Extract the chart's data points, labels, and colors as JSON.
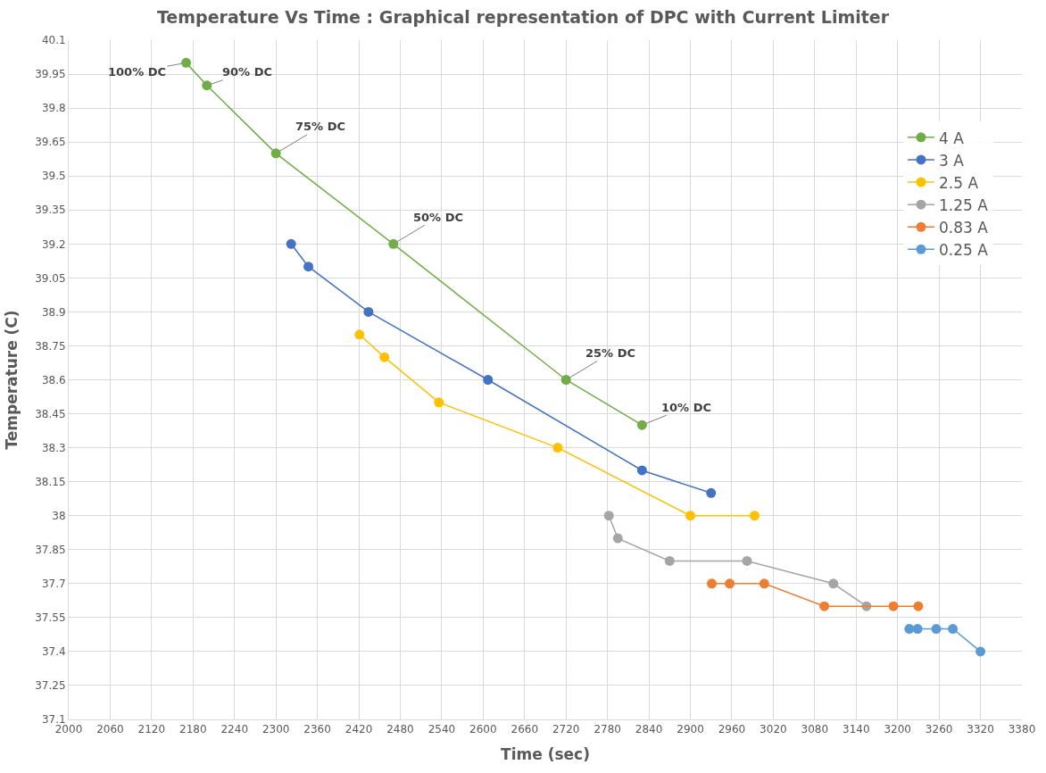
{
  "chart_data": {
    "type": "line",
    "title": "Temperature Vs Time : Graphical representation of DPC with Current Limiter",
    "xlabel": "Time (sec)",
    "ylabel": "Temperature (C)",
    "xlim": [
      2000,
      3380
    ],
    "xticks": [
      2000,
      2060,
      2120,
      2180,
      2240,
      2300,
      2360,
      2420,
      2480,
      2540,
      2600,
      2660,
      2720,
      2780,
      2840,
      2900,
      2960,
      3020,
      3080,
      3140,
      3200,
      3260,
      3320,
      3380
    ],
    "ylim": [
      37.1,
      40.1
    ],
    "yticks": [
      37.1,
      37.25,
      37.4,
      37.55,
      37.7,
      37.85,
      38,
      38.15,
      38.3,
      38.45,
      38.6,
      38.75,
      38.9,
      39.05,
      39.2,
      39.35,
      39.5,
      39.65,
      39.8,
      39.95,
      40.1
    ],
    "grid": true,
    "legend": "top right",
    "marker": "circle",
    "line_style": "solid",
    "series": [
      {
        "name": "4 A",
        "color": "#70ad47",
        "x": [
          2170,
          2200,
          2300,
          2470,
          2720,
          2830
        ],
        "values": [
          40.0,
          39.9,
          39.6,
          39.2,
          38.6,
          38.4
        ]
      },
      {
        "name": "3 A",
        "color": "#4472c4",
        "x": [
          2322,
          2347,
          2434,
          2607,
          2830,
          2930
        ],
        "values": [
          39.2,
          39.1,
          38.9,
          38.6,
          38.2,
          38.1
        ]
      },
      {
        "name": "2.5 A",
        "color": "#ffc000",
        "x": [
          2421,
          2457,
          2536,
          2708,
          2900,
          2993
        ],
        "values": [
          38.8,
          38.7,
          38.5,
          38.3,
          38.0,
          38.0
        ]
      },
      {
        "name": "1.25 A",
        "color": "#a5a5a5",
        "x": [
          2782,
          2795,
          2870,
          2982,
          3107,
          3155
        ],
        "values": [
          38.0,
          37.9,
          37.8,
          37.8,
          37.7,
          37.6
        ]
      },
      {
        "name": "0.83 A",
        "color": "#ed7d31",
        "x": [
          2931,
          2957,
          3007,
          3094,
          3194,
          3230
        ],
        "values": [
          37.7,
          37.7,
          37.7,
          37.6,
          37.6,
          37.6
        ]
      },
      {
        "name": "0.25 A",
        "color": "#5b9bd5",
        "x": [
          3217,
          3229,
          3256,
          3280,
          3320
        ],
        "values": [
          37.5,
          37.5,
          37.5,
          37.5,
          37.4
        ]
      }
    ],
    "annotations": [
      {
        "text": "100% DC",
        "x": 2170,
        "y": 40.0
      },
      {
        "text": "90% DC",
        "x": 2200,
        "y": 39.9
      },
      {
        "text": "75% DC",
        "x": 2300,
        "y": 39.6
      },
      {
        "text": "50% DC",
        "x": 2470,
        "y": 39.2
      },
      {
        "text": "25% DC",
        "x": 2720,
        "y": 38.6
      },
      {
        "text": "10% DC",
        "x": 2830,
        "y": 38.4
      }
    ]
  }
}
